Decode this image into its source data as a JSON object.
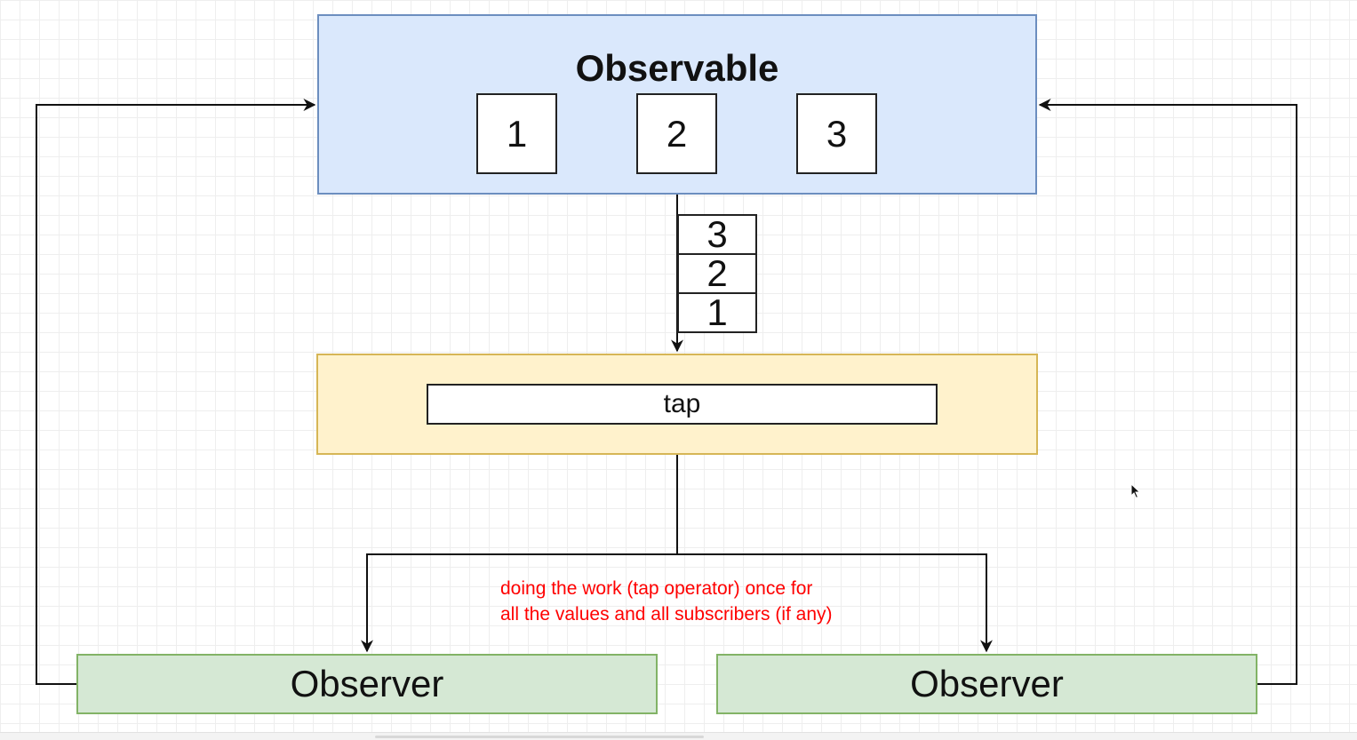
{
  "diagram": {
    "observable": {
      "title": "Observable",
      "values": [
        "1",
        "2",
        "3"
      ]
    },
    "emission_stack": [
      "3",
      "2",
      "1"
    ],
    "operator": {
      "label": "tap"
    },
    "observers": [
      {
        "label": "Observer"
      },
      {
        "label": "Observer"
      }
    ],
    "annotation": {
      "line1": "doing the work (tap operator) once for",
      "line2": "all the values and all subscribers (if any)"
    }
  },
  "colors": {
    "observable_fill": "#dae8fc",
    "observable_stroke": "#6c8ebf",
    "operator_fill": "#fff2cc",
    "operator_stroke": "#d6b656",
    "observer_fill": "#d5e8d4",
    "observer_stroke": "#82b366",
    "annotation_text": "#ff0000",
    "connector": "#111111"
  }
}
